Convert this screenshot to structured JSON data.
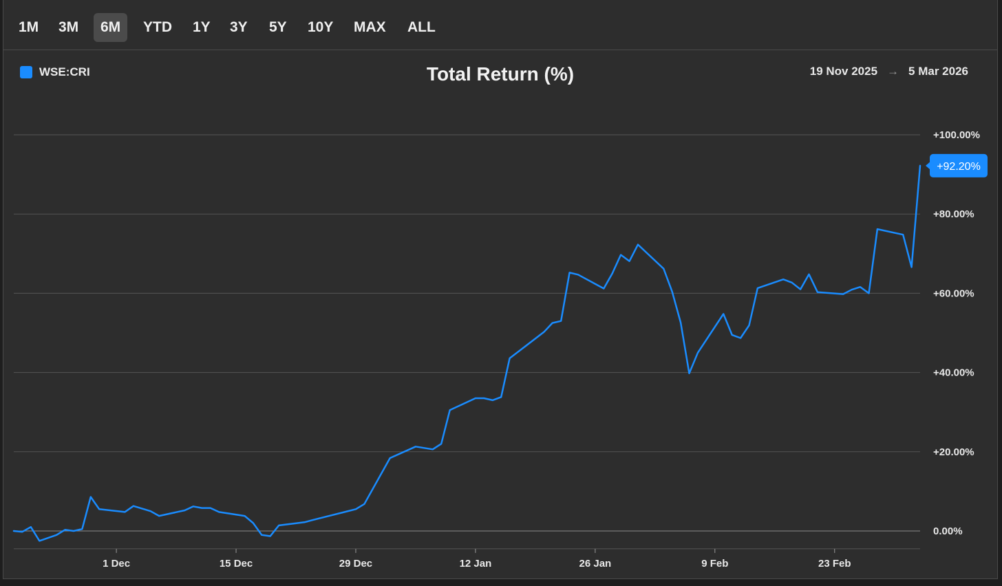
{
  "toolbar": {
    "ranges": [
      {
        "label": "1M",
        "active": false
      },
      {
        "label": "3M",
        "active": false
      },
      {
        "label": "6M",
        "active": true
      },
      {
        "label": "YTD",
        "active": false
      },
      {
        "label": "1Y",
        "active": false
      },
      {
        "label": "3Y",
        "active": false
      },
      {
        "label": "5Y",
        "active": false
      },
      {
        "label": "10Y",
        "active": false
      },
      {
        "label": "MAX",
        "active": false
      },
      {
        "label": "ALL",
        "active": false
      }
    ]
  },
  "legend": {
    "label": "WSE:CRI",
    "color": "#1a8cff"
  },
  "date_range": {
    "start": "19 Nov 2025",
    "arrow": "→",
    "end": "5 Mar 2026"
  },
  "colors": {
    "line": "#1a8cff",
    "grid": "#555555",
    "zero_line": "#8a8a8a",
    "background": "#2d2d2d"
  },
  "chart_data": {
    "type": "line",
    "title": "Total Return (%)",
    "xlabel": "",
    "ylabel": "",
    "ylim": [
      -4.5,
      100
    ],
    "xlim": [
      "2025-11-19",
      "2026-03-05"
    ],
    "grid": true,
    "yticks": [
      0,
      20,
      40,
      60,
      80,
      100
    ],
    "ytick_labels": [
      "0.00%",
      "+20.00%",
      "+40.00%",
      "+60.00%",
      "+80.00%",
      "+100.00%"
    ],
    "xticks": [
      "2025-12-01",
      "2025-12-15",
      "2025-12-29",
      "2026-01-12",
      "2026-01-26",
      "2026-02-09",
      "2026-02-23"
    ],
    "xtick_labels": [
      "1 Dec",
      "15 Dec",
      "29 Dec",
      "12 Jan",
      "26 Jan",
      "9 Feb",
      "23 Feb"
    ],
    "last_value_label": "+92.20%",
    "series": [
      {
        "name": "WSE:CRI",
        "points": [
          [
            "2025-11-19",
            0.0
          ],
          [
            "2025-11-20",
            -0.2
          ],
          [
            "2025-11-21",
            1.0
          ],
          [
            "2025-11-22",
            -2.5
          ],
          [
            "2025-11-24",
            -1.0
          ],
          [
            "2025-11-25",
            0.3
          ],
          [
            "2025-11-26",
            0.0
          ],
          [
            "2025-11-27",
            0.5
          ],
          [
            "2025-11-28",
            8.6
          ],
          [
            "2025-11-29",
            5.5
          ],
          [
            "2025-12-02",
            4.8
          ],
          [
            "2025-12-03",
            6.3
          ],
          [
            "2025-12-05",
            5.0
          ],
          [
            "2025-12-06",
            3.8
          ],
          [
            "2025-12-09",
            5.2
          ],
          [
            "2025-12-10",
            6.2
          ],
          [
            "2025-12-11",
            5.8
          ],
          [
            "2025-12-12",
            5.8
          ],
          [
            "2025-12-13",
            4.8
          ],
          [
            "2025-12-16",
            3.8
          ],
          [
            "2025-12-17",
            2.0
          ],
          [
            "2025-12-18",
            -1.0
          ],
          [
            "2025-12-19",
            -1.3
          ],
          [
            "2025-12-20",
            1.4
          ],
          [
            "2025-12-23",
            2.2
          ],
          [
            "2025-12-24",
            2.8
          ],
          [
            "2025-12-29",
            5.5
          ],
          [
            "2025-12-30",
            6.8
          ],
          [
            "2026-01-02",
            18.4
          ],
          [
            "2026-01-05",
            21.3
          ],
          [
            "2026-01-07",
            20.6
          ],
          [
            "2026-01-08",
            22.0
          ],
          [
            "2026-01-09",
            30.5
          ],
          [
            "2026-01-12",
            33.5
          ],
          [
            "2026-01-13",
            33.5
          ],
          [
            "2026-01-14",
            33.0
          ],
          [
            "2026-01-15",
            33.8
          ],
          [
            "2026-01-16",
            43.6
          ],
          [
            "2026-01-20",
            50.2
          ],
          [
            "2026-01-21",
            52.5
          ],
          [
            "2026-01-22",
            53.0
          ],
          [
            "2026-01-23",
            65.2
          ],
          [
            "2026-01-24",
            64.7
          ],
          [
            "2026-01-27",
            61.2
          ],
          [
            "2026-01-28",
            65.0
          ],
          [
            "2026-01-29",
            69.7
          ],
          [
            "2026-01-30",
            68.1
          ],
          [
            "2026-01-31",
            72.3
          ],
          [
            "2026-02-03",
            66.2
          ],
          [
            "2026-02-04",
            60.4
          ],
          [
            "2026-02-05",
            52.6
          ],
          [
            "2026-02-06",
            39.8
          ],
          [
            "2026-02-07",
            45.0
          ],
          [
            "2026-02-10",
            54.8
          ],
          [
            "2026-02-11",
            49.5
          ],
          [
            "2026-02-12",
            48.7
          ],
          [
            "2026-02-13",
            51.9
          ],
          [
            "2026-02-14",
            61.3
          ],
          [
            "2026-02-17",
            63.5
          ],
          [
            "2026-02-18",
            62.7
          ],
          [
            "2026-02-19",
            61.0
          ],
          [
            "2026-02-20",
            64.8
          ],
          [
            "2026-02-21",
            60.3
          ],
          [
            "2026-02-24",
            59.8
          ],
          [
            "2026-02-25",
            60.9
          ],
          [
            "2026-02-26",
            61.6
          ],
          [
            "2026-02-27",
            60.0
          ],
          [
            "2026-02-28",
            76.2
          ],
          [
            "2026-03-03",
            74.8
          ],
          [
            "2026-03-04",
            66.6
          ],
          [
            "2026-03-05",
            92.2
          ]
        ]
      }
    ]
  }
}
